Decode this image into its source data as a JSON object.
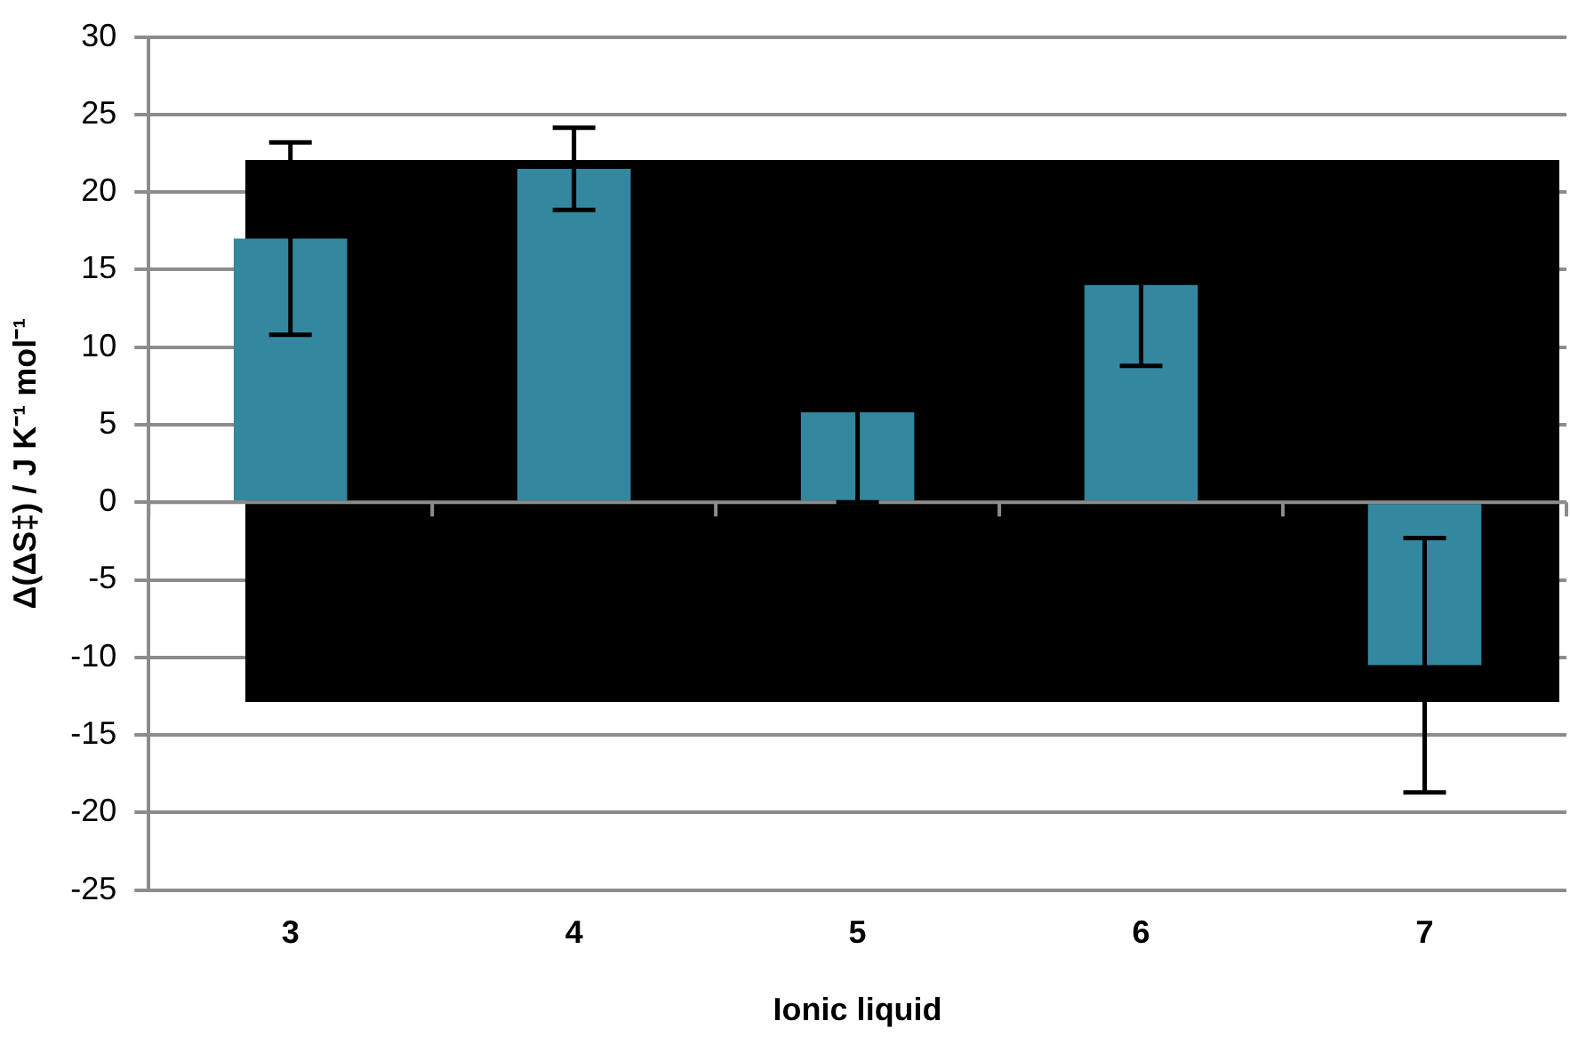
{
  "chart_data": {
    "type": "bar",
    "xlabel": "Ionic liquid",
    "ylabel": "Δ(ΔS‡) / J K⁻¹ mol⁻¹",
    "categories": [
      "3",
      "4",
      "5",
      "6",
      "7"
    ],
    "values": [
      17,
      21.5,
      5.8,
      14,
      -10.5
    ],
    "errors": [
      6.2,
      2.65,
      [
        0,
        5.8
      ],
      [
        8.8,
        14
      ],
      8.2
    ],
    "color": "#33879f",
    "ylim": [
      -25,
      30
    ],
    "yticks": [
      -25,
      -20,
      -15,
      -10,
      -5,
      0,
      5,
      10,
      15,
      20,
      25,
      30
    ],
    "grid": "y"
  }
}
